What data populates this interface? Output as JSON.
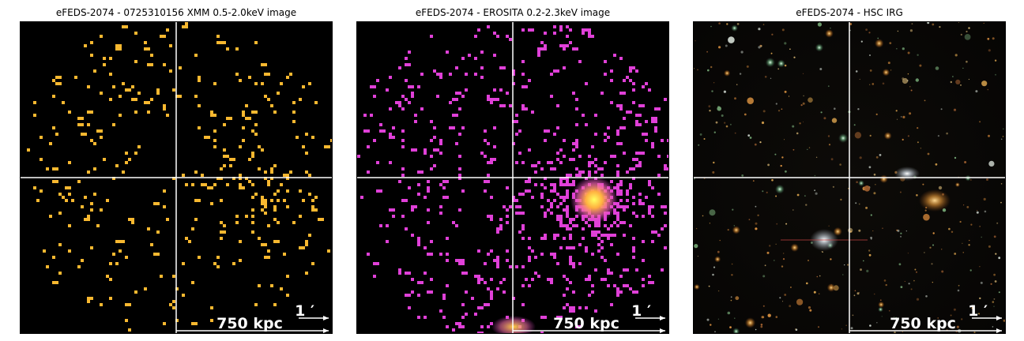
{
  "panels": [
    {
      "title": "eFEDS-2074 - 0725310156 XMM 0.5-2.0keV image",
      "scale_arcmin": "1 ′",
      "scale_kpc": "750 kpc",
      "type": "xray-sparse",
      "pixel_color": "#f8b830"
    },
    {
      "title": "eFEDS-2074 -  EROSITA 0.2-2.3keV image",
      "scale_arcmin": "1 ′",
      "scale_kpc": "750 kpc",
      "type": "xray-dense",
      "pixel_color": "#e040d8"
    },
    {
      "title": "eFEDS-2074 - HSC IRG",
      "scale_arcmin": "1 ′",
      "scale_kpc": "750 kpc",
      "type": "optical"
    }
  ],
  "colors": {
    "crosshair": "#ffffff",
    "background": "#000000"
  }
}
